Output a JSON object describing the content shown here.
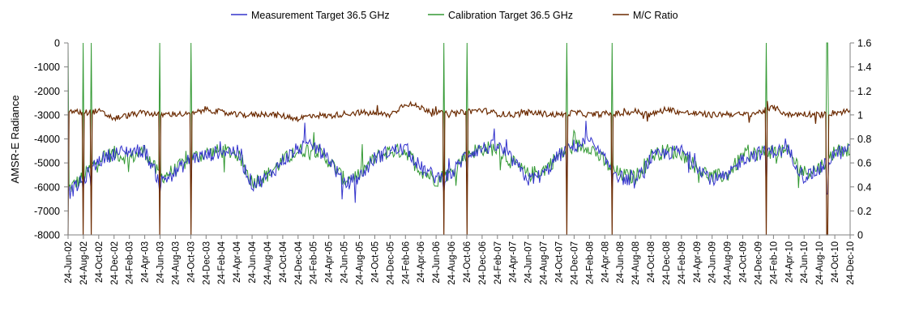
{
  "chart_data": {
    "type": "line",
    "title": "",
    "xlabel": "",
    "ylabel": "AMSR-E Radiance",
    "y2label": "",
    "ylim": [
      -8000,
      0
    ],
    "y2lim": [
      0,
      1.6
    ],
    "yticks": [
      "0",
      "-1000",
      "-2000",
      "-3000",
      "-4000",
      "-5000",
      "-6000",
      "-7000",
      "-8000"
    ],
    "y2ticks": [
      "1.6",
      "1.4",
      "1.2",
      "1",
      "0.8",
      "0.6",
      "0.4",
      "0.2",
      "0"
    ],
    "x_tick_labels": [
      "24-Jun-02",
      "24-Aug-02",
      "24-Oct-02",
      "24-Dec-02",
      "24-Feb-03",
      "24-Apr-03",
      "24-Jun-03",
      "24-Aug-03",
      "24-Oct-03",
      "24-Dec-03",
      "24-Feb-04",
      "24-Apr-04",
      "24-Jun-04",
      "24-Aug-04",
      "24-Oct-04",
      "24-Dec-04",
      "24-Feb-05",
      "24-Apr-05",
      "24-Jun-05",
      "24-Aug-05",
      "24-Oct-05",
      "24-Dec-05",
      "24-Feb-06",
      "24-Apr-06",
      "24-Jun-06",
      "24-Aug-06",
      "24-Oct-06",
      "24-Dec-06",
      "24-Feb-07",
      "24-Apr-07",
      "24-Jun-07",
      "24-Aug-07",
      "24-Oct-07",
      "24-Dec-07",
      "24-Feb-08",
      "24-Apr-08",
      "24-Jun-08",
      "24-Aug-08",
      "24-Oct-08",
      "24-Dec-08",
      "24-Feb-09",
      "24-Apr-09",
      "24-Jun-09",
      "24-Aug-09",
      "24-Oct-09",
      "24-Dec-09",
      "24-Feb-10",
      "24-Apr-10",
      "24-Jun-10",
      "24-Aug-10",
      "24-Oct-10",
      "24-Dec-10"
    ],
    "grid": false,
    "legend_position": "top",
    "series": [
      {
        "name": "Measurement Target 36.5 GHz",
        "axis": "left",
        "color": "#3333cc",
        "x": [
          "24-Jun-02",
          "24-Aug-02",
          "24-Oct-02",
          "24-Dec-02",
          "24-Feb-03",
          "24-Apr-03",
          "24-Jun-03",
          "24-Aug-03",
          "24-Oct-03",
          "24-Dec-03",
          "24-Feb-04",
          "24-Apr-04",
          "24-Jun-04",
          "24-Aug-04",
          "24-Oct-04",
          "24-Dec-04",
          "24-Feb-05",
          "24-Apr-05",
          "24-Jun-05",
          "24-Aug-05",
          "24-Oct-05",
          "24-Dec-05",
          "24-Feb-06",
          "24-Apr-06",
          "24-Jun-06",
          "24-Aug-06",
          "24-Oct-06",
          "24-Dec-06",
          "24-Feb-07",
          "24-Apr-07",
          "24-Jun-07",
          "24-Aug-07",
          "24-Oct-07",
          "24-Dec-07",
          "24-Feb-08",
          "24-Apr-08",
          "24-Jun-08",
          "24-Aug-08",
          "24-Oct-08",
          "24-Dec-08",
          "24-Feb-09",
          "24-Apr-09",
          "24-Jun-09",
          "24-Aug-09",
          "24-Oct-09",
          "24-Dec-09",
          "24-Feb-10",
          "24-Apr-10",
          "24-Jun-10",
          "24-Aug-10",
          "24-Oct-10",
          "24-Dec-10"
        ],
        "values": [
          -6300,
          -5700,
          -4900,
          -4600,
          -4500,
          -4500,
          -5800,
          -5400,
          -4800,
          -4700,
          -4500,
          -4500,
          -5900,
          -5600,
          -4900,
          -4400,
          -4300,
          -4800,
          -5900,
          -5600,
          -4800,
          -4500,
          -4400,
          -5200,
          -5600,
          -5500,
          -4600,
          -4400,
          -4300,
          -4900,
          -5700,
          -5500,
          -4700,
          -4300,
          -4100,
          -4900,
          -5600,
          -5800,
          -4800,
          -4600,
          -4500,
          -5100,
          -5700,
          -5600,
          -4800,
          -4600,
          -4500,
          -4500,
          -5600,
          -5300,
          -4600,
          -4500
        ]
      },
      {
        "name": "Calibration Target 36.5 GHz",
        "axis": "left",
        "color": "#339933",
        "x": [
          "24-Jun-02",
          "24-Aug-02",
          "24-Oct-02",
          "24-Dec-02",
          "24-Feb-03",
          "24-Apr-03",
          "24-Jun-03",
          "24-Aug-03",
          "24-Oct-03",
          "24-Dec-03",
          "24-Feb-04",
          "24-Apr-04",
          "24-Jun-04",
          "24-Aug-04",
          "24-Oct-04",
          "24-Dec-04",
          "24-Feb-05",
          "24-Apr-05",
          "24-Jun-05",
          "24-Aug-05",
          "24-Oct-05",
          "24-Dec-05",
          "24-Feb-06",
          "24-Apr-06",
          "24-Jun-06",
          "24-Aug-06",
          "24-Oct-06",
          "24-Dec-06",
          "24-Feb-07",
          "24-Apr-07",
          "24-Jun-07",
          "24-Aug-07",
          "24-Oct-07",
          "24-Dec-07",
          "24-Feb-08",
          "24-Apr-08",
          "24-Jun-08",
          "24-Aug-08",
          "24-Oct-08",
          "24-Dec-08",
          "24-Feb-09",
          "24-Apr-09",
          "24-Jun-09",
          "24-Aug-09",
          "24-Oct-09",
          "24-Dec-09",
          "24-Feb-10",
          "24-Apr-10",
          "24-Jun-10",
          "24-Aug-10",
          "24-Oct-10",
          "24-Dec-10"
        ],
        "values": [
          -6100,
          -5600,
          -4800,
          -4600,
          -4800,
          -4500,
          -5600,
          -5300,
          -4800,
          -4600,
          -4500,
          -4600,
          -5800,
          -5500,
          -4900,
          -4500,
          -4400,
          -4900,
          -5700,
          -5500,
          -4800,
          -4500,
          -4500,
          -5300,
          -5700,
          -5400,
          -4600,
          -4400,
          -4400,
          -5000,
          -5500,
          -5300,
          -4700,
          -4300,
          -4300,
          -5000,
          -5500,
          -5600,
          -4700,
          -4500,
          -4600,
          -5200,
          -5600,
          -5500,
          -4700,
          -4600,
          -4500,
          -4600,
          -5400,
          -5200,
          -4500,
          -4400
        ]
      },
      {
        "name": "M/C Ratio",
        "axis": "right",
        "color": "#6b2a00",
        "x": [
          "24-Jun-02",
          "24-Aug-02",
          "24-Oct-02",
          "24-Dec-02",
          "24-Feb-03",
          "24-Apr-03",
          "24-Jun-03",
          "24-Aug-03",
          "24-Oct-03",
          "24-Dec-03",
          "24-Feb-04",
          "24-Apr-04",
          "24-Jun-04",
          "24-Aug-04",
          "24-Oct-04",
          "24-Dec-04",
          "24-Feb-05",
          "24-Apr-05",
          "24-Jun-05",
          "24-Aug-05",
          "24-Oct-05",
          "24-Dec-05",
          "24-Feb-06",
          "24-Apr-06",
          "24-Jun-06",
          "24-Aug-06",
          "24-Oct-06",
          "24-Dec-06",
          "24-Feb-07",
          "24-Apr-07",
          "24-Jun-07",
          "24-Aug-07",
          "24-Oct-07",
          "24-Dec-07",
          "24-Feb-08",
          "24-Apr-08",
          "24-Jun-08",
          "24-Aug-08",
          "24-Oct-08",
          "24-Dec-08",
          "24-Feb-09",
          "24-Apr-09",
          "24-Jun-09",
          "24-Aug-09",
          "24-Oct-09",
          "24-Dec-09",
          "24-Feb-10",
          "24-Apr-10",
          "24-Jun-10",
          "24-Aug-10",
          "24-Oct-10",
          "24-Dec-10"
        ],
        "values": [
          1.03,
          1.02,
          1.03,
          0.97,
          1.0,
          1.02,
          1.0,
          1.01,
          1.0,
          1.05,
          1.02,
          1.0,
          1.0,
          1.01,
          0.99,
          0.97,
          1.0,
          0.99,
          1.01,
          1.02,
          1.01,
          1.0,
          1.1,
          1.06,
          1.02,
          1.0,
          1.03,
          1.04,
          1.01,
          1.0,
          1.02,
          1.01,
          1.0,
          1.02,
          1.0,
          1.01,
          1.01,
          1.03,
          1.0,
          1.05,
          1.02,
          1.01,
          1.0,
          1.01,
          1.0,
          1.02,
          1.06,
          1.0,
          1.01,
          1.0,
          1.02,
          1.03
        ]
      }
    ],
    "spike_dates": [
      "24-Jun-02",
      "24-Aug-02",
      "24-Sep-02",
      "24-Jun-03",
      "24-Oct-03",
      "24-Jul-06",
      "24-Oct-06",
      "24-Nov-07",
      "24-May-08",
      "24-Jan-10",
      "24-Sep-10"
    ]
  }
}
